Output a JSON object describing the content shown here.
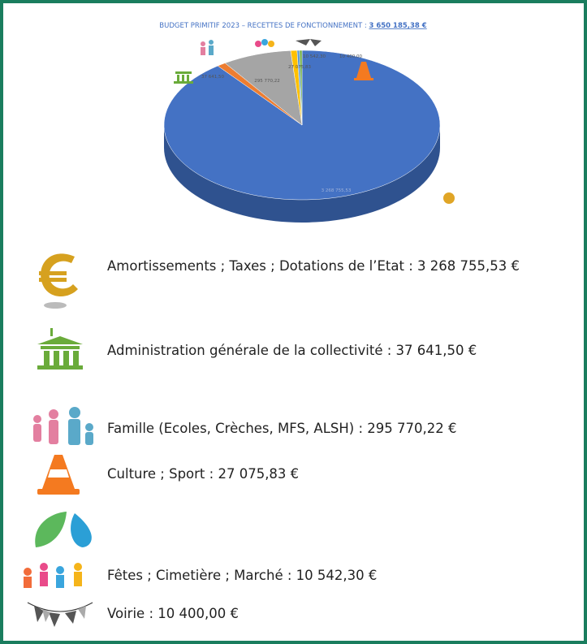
{
  "chart_data": {
    "type": "pie",
    "title": "BUDGET PRIMITIF 2023 – RECETTES DE FONCTIONNEMENT : ",
    "title_total": "3 650 185,38 €",
    "categories": [
      "Amortissements ; Taxes ; Dotations de l’Etat : 3 268 755,53 €",
      "Administration générale de la collectivité : 37 641,50 €",
      "Famille (Ecoles, Crèches, MFS, ALSH) : 295 770,22 €",
      "Culture ; Sport : 27 075,83 €",
      "Fêtes ; Cimetière ; Marché : 10 542,30 €",
      "Voirie :  10 400,00 €"
    ],
    "values": [
      3268755.53,
      37641.5,
      295770.22,
      27075.83,
      10542.3,
      10400.0
    ],
    "value_labels": [
      "3 268 755,53",
      "37 641,50",
      "295 770,22",
      "27 075,83",
      "10 542,30",
      "10 400,00"
    ],
    "colors": [
      "#4472c4",
      "#ed7d31",
      "#a5a5a5",
      "#ffc000",
      "#5b9bd5",
      "#70ad47"
    ]
  }
}
